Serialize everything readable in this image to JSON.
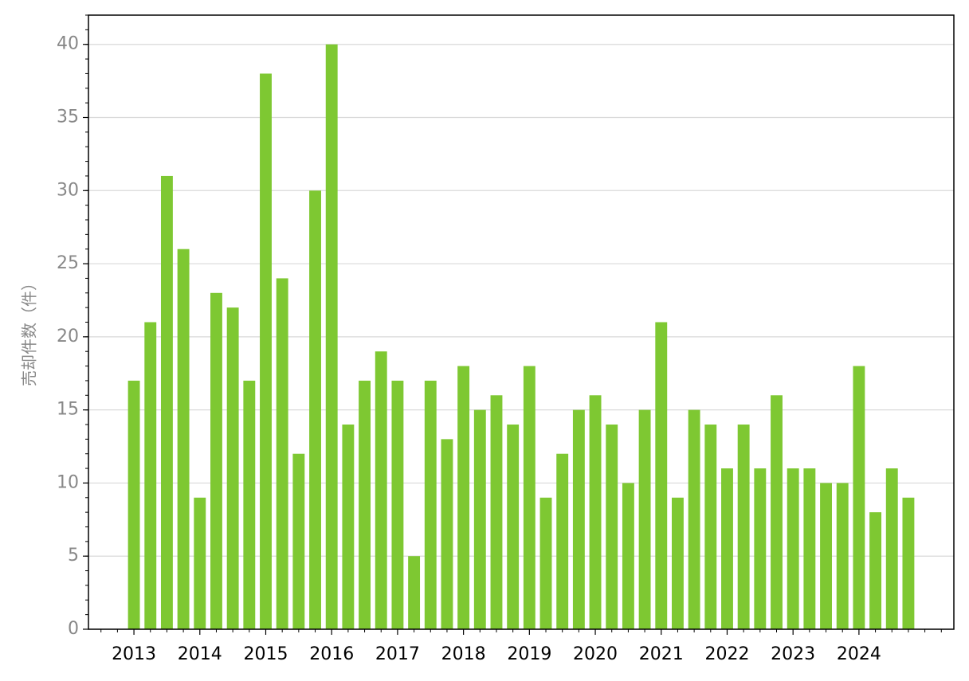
{
  "chart_data": {
    "type": "bar",
    "y_label": "売却件数（件）",
    "categories": [
      "2013",
      null,
      null,
      null,
      "2014",
      null,
      null,
      null,
      "2015",
      null,
      null,
      null,
      "2016",
      null,
      null,
      null,
      "2017",
      null,
      null,
      null,
      "2018",
      null,
      null,
      null,
      "2019",
      null,
      null,
      null,
      "2020",
      null,
      null,
      null,
      "2021",
      null,
      null,
      null,
      "2022",
      null,
      null,
      null,
      "2023",
      null,
      null,
      null,
      "2024",
      null,
      null,
      null
    ],
    "values": [
      17,
      21,
      31,
      26,
      9,
      23,
      22,
      17,
      38,
      24,
      12,
      30,
      40,
      14,
      17,
      19,
      17,
      5,
      17,
      13,
      18,
      15,
      16,
      14,
      18,
      9,
      12,
      15,
      16,
      14,
      10,
      15,
      21,
      9,
      15,
      14,
      11,
      14,
      11,
      16,
      11,
      11,
      10,
      10,
      18,
      8,
      11,
      9
    ],
    "color": "#7ec832",
    "ylim": [
      0,
      42
    ],
    "yticks": [
      0,
      5,
      10,
      15,
      20,
      25,
      30,
      35,
      40
    ],
    "grid": true
  }
}
